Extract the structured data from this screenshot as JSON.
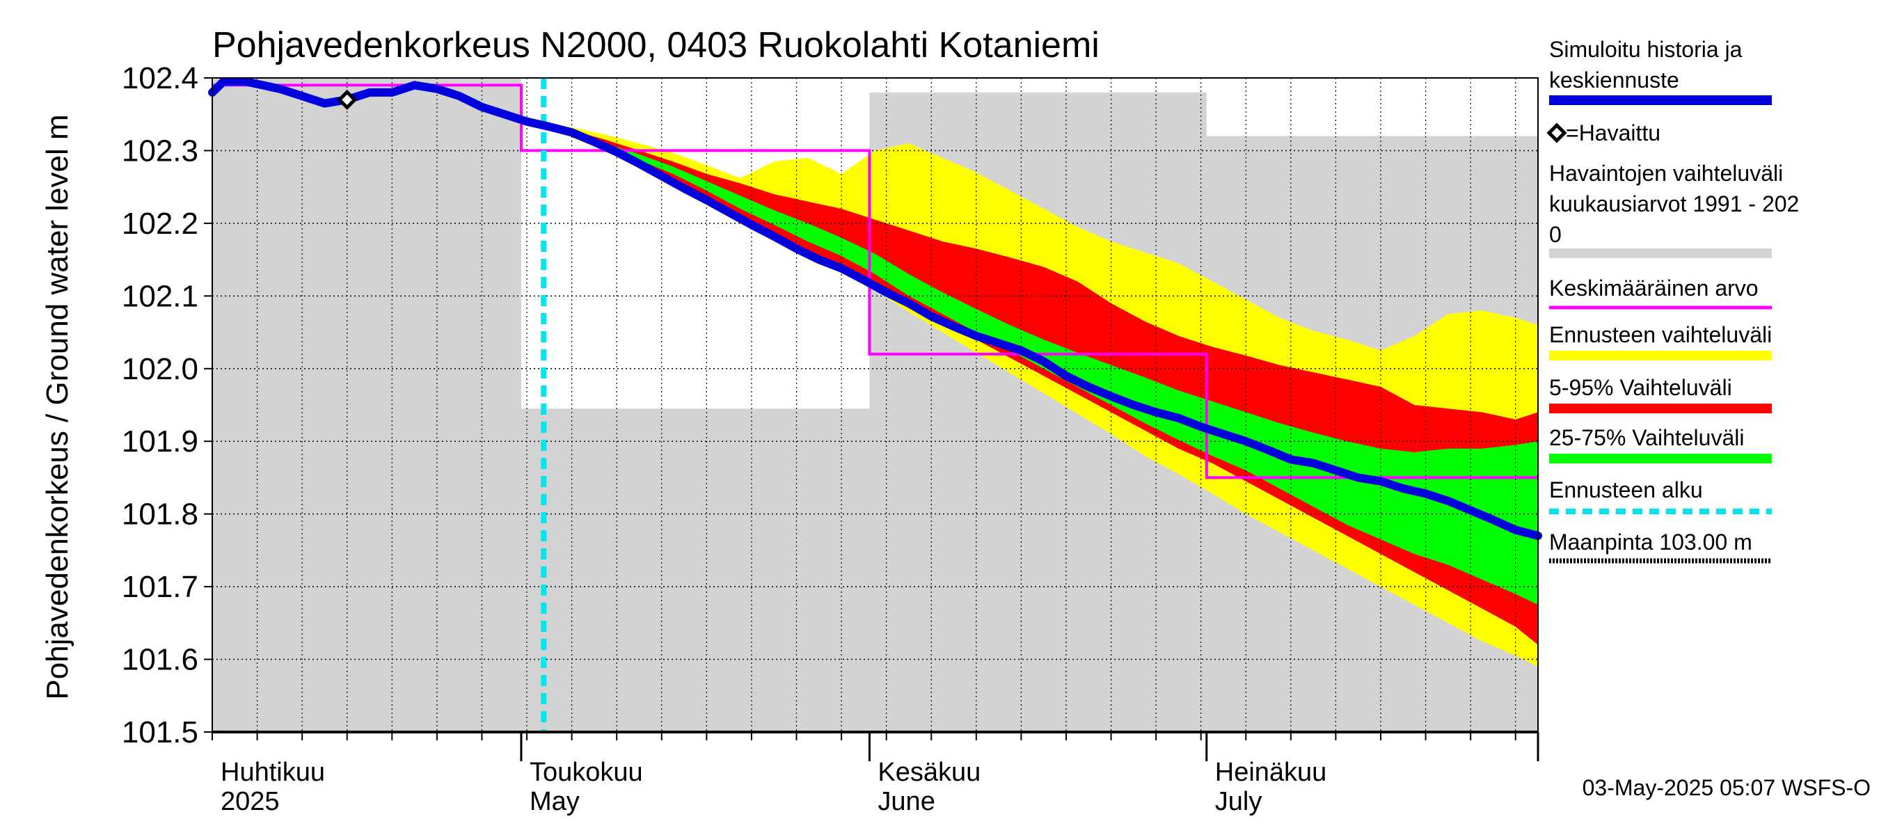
{
  "chart_data": {
    "type": "line",
    "title": "Pohjavedenkorkeus N2000, 0403 Ruokolahti Kotaniemi",
    "ylabel": "Pohjavedenkorkeus / Ground water level   m",
    "ylim": [
      101.5,
      102.4
    ],
    "xlim": [
      0,
      118
    ],
    "yticks": [
      "102.4",
      "102.3",
      "102.2",
      "102.1",
      "102.0",
      "101.9",
      "101.8",
      "101.7",
      "101.6",
      "101.5"
    ],
    "months": [
      {
        "fi": "Huhtikuu",
        "en": "2025",
        "start": 0
      },
      {
        "fi": "Toukokuu",
        "en": "May",
        "start": 27.5
      },
      {
        "fi": "Kesäkuu",
        "en": "June",
        "start": 58.5
      },
      {
        "fi": "Heinäkuu",
        "en": "July",
        "start": 88.5
      }
    ],
    "month_ends": [
      27.5,
      58.5,
      88.5,
      118
    ],
    "forecast_start": 29.5,
    "footer": "03-May-2025 05:07 WSFS-O",
    "legend": {
      "sim": "Simuloitu historia ja keskiennuste",
      "observed": "=Havaittu",
      "range_line1": "Havaintojen vaihteluväli",
      "range_line2": " kuukausiarvot 1991 - 202",
      "range_line3": "0",
      "mean": "Keskimääräinen arvo",
      "forecast_range": "Ennusteen vaihteluväli",
      "p5_95": "5-95% Vaihteluväli",
      "p25_75": "25-75% Vaihteluväli",
      "forecast_start": "Ennusteen alku",
      "ground": "Maanpinta 103.00 m"
    },
    "colors": {
      "sim": "#0000dd",
      "observed": "#000000",
      "range": "#d3d3d3",
      "mean": "#ff00ff",
      "forecast_range": "#ffff00",
      "p5_95": "#ff0000",
      "p25_75": "#00ff00",
      "forecast_start": "#00e5ee",
      "ground": "#000000"
    },
    "historical_range": [
      {
        "start": 0,
        "end": 27.5,
        "max": 102.4,
        "min": 101.5
      },
      {
        "start": 27.5,
        "end": 58.5,
        "max": 101.945,
        "min": 101.5
      },
      {
        "start": 58.5,
        "end": 88.5,
        "max": 102.38,
        "min": 101.5
      },
      {
        "start": 88.5,
        "end": 118,
        "max": 102.32,
        "min": 101.5
      }
    ],
    "monthly_mean": [
      {
        "start": 0,
        "end": 27.5,
        "value": 102.39
      },
      {
        "start": 27.5,
        "end": 58.5,
        "value": 102.3
      },
      {
        "start": 58.5,
        "end": 88.5,
        "value": 102.02
      },
      {
        "start": 88.5,
        "end": 118,
        "value": 101.85
      }
    ],
    "observed": [
      {
        "x": 12,
        "y": 102.37
      }
    ],
    "simulated": {
      "x": [
        0,
        1,
        3,
        6,
        8,
        10,
        12,
        14,
        16,
        18,
        20,
        22,
        24,
        26,
        28,
        30,
        32,
        34,
        36,
        38,
        40,
        42,
        44,
        46,
        48,
        50,
        52,
        54,
        56,
        58,
        60,
        62,
        64,
        66,
        68,
        70,
        72,
        74,
        76,
        78,
        80,
        82,
        84,
        86,
        88,
        90,
        92,
        94,
        96,
        98,
        100,
        102,
        104,
        106,
        108,
        110,
        112,
        114,
        116,
        118
      ],
      "y": [
        102.38,
        102.395,
        102.395,
        102.385,
        102.375,
        102.365,
        102.37,
        102.38,
        102.38,
        102.39,
        102.385,
        102.375,
        102.36,
        102.35,
        102.34,
        102.333,
        102.325,
        102.312,
        102.298,
        102.282,
        102.265,
        102.248,
        102.232,
        102.215,
        102.198,
        102.182,
        102.165,
        102.15,
        102.138,
        102.122,
        102.105,
        102.09,
        102.072,
        102.058,
        102.045,
        102.035,
        102.025,
        102.01,
        101.99,
        101.975,
        101.962,
        101.95,
        101.94,
        101.932,
        101.92,
        101.91,
        101.9,
        101.888,
        101.875,
        101.87,
        101.86,
        101.85,
        101.845,
        101.835,
        101.828,
        101.818,
        101.805,
        101.792,
        101.778,
        101.77
      ]
    },
    "forecast_x": [
      29.5,
      32,
      35,
      38,
      41,
      44,
      47,
      50,
      53,
      56,
      59,
      62,
      65,
      68,
      71,
      74,
      77,
      80,
      83,
      86,
      89,
      92,
      95,
      98,
      101,
      104,
      107,
      110,
      113,
      116,
      118
    ],
    "forecast_max": [
      102.335,
      102.332,
      102.322,
      102.31,
      102.297,
      102.28,
      102.262,
      102.285,
      102.29,
      102.268,
      102.3,
      102.31,
      102.29,
      102.27,
      102.245,
      102.22,
      102.195,
      102.175,
      102.16,
      102.145,
      102.12,
      102.095,
      102.07,
      102.052,
      102.04,
      102.025,
      102.045,
      102.075,
      102.08,
      102.07,
      102.06
    ],
    "forecast_p95": [
      102.335,
      102.328,
      102.315,
      102.3,
      102.285,
      102.268,
      102.255,
      102.24,
      102.23,
      102.22,
      102.205,
      102.19,
      102.175,
      102.165,
      102.153,
      102.14,
      102.12,
      102.09,
      102.065,
      102.045,
      102.03,
      102.018,
      102.005,
      101.995,
      101.985,
      101.975,
      101.95,
      101.945,
      101.94,
      101.93,
      101.94
    ],
    "forecast_p75": [
      102.335,
      102.325,
      102.31,
      102.295,
      102.278,
      102.258,
      102.238,
      102.218,
      102.2,
      102.18,
      102.158,
      102.13,
      102.105,
      102.082,
      102.06,
      102.04,
      102.022,
      102.005,
      101.988,
      101.97,
      101.955,
      101.94,
      101.925,
      101.912,
      101.9,
      101.89,
      101.885,
      101.89,
      101.89,
      101.895,
      101.9
    ],
    "forecast_p25": [
      102.335,
      102.322,
      102.305,
      102.287,
      102.268,
      102.245,
      102.22,
      102.198,
      102.175,
      102.155,
      102.13,
      102.1,
      102.075,
      102.05,
      102.025,
      102.0,
      101.975,
      101.95,
      101.925,
      101.902,
      101.88,
      101.86,
      101.835,
      101.81,
      101.785,
      101.765,
      101.745,
      101.73,
      101.71,
      101.69,
      101.675
    ],
    "forecast_p5": [
      102.335,
      102.32,
      102.302,
      102.282,
      102.26,
      102.236,
      102.21,
      102.185,
      102.162,
      102.14,
      102.12,
      102.09,
      102.065,
      102.04,
      102.015,
      101.99,
      101.965,
      101.94,
      101.915,
      101.89,
      101.87,
      101.845,
      101.82,
      101.795,
      101.77,
      101.745,
      101.72,
      101.695,
      101.67,
      101.645,
      101.62
    ],
    "forecast_min": [
      102.335,
      102.318,
      102.3,
      102.28,
      102.257,
      102.232,
      102.206,
      102.18,
      102.156,
      102.132,
      102.108,
      102.078,
      102.05,
      102.022,
      101.994,
      101.966,
      101.938,
      101.91,
      101.88,
      101.855,
      101.828,
      101.8,
      101.775,
      101.75,
      101.725,
      101.7,
      101.675,
      101.65,
      101.625,
      101.605,
      101.59
    ]
  }
}
